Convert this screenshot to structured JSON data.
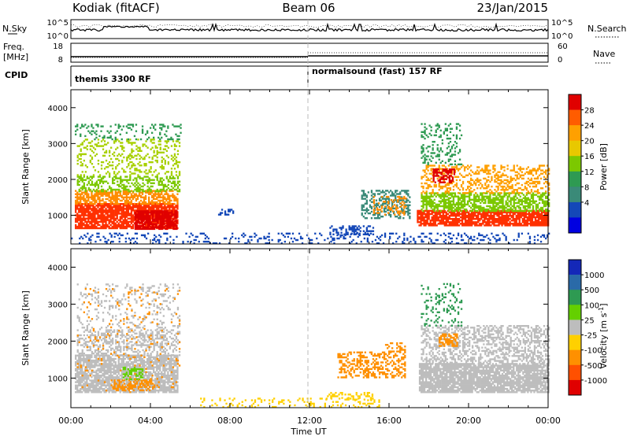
{
  "header": {
    "station": "Kodiak (fitACF)",
    "beam": "Beam 06",
    "date": "23/Jan/2015"
  },
  "colors": {
    "dash_line": "#bbbbbb",
    "bad": "#bdbdbd"
  },
  "top_panels": {
    "nsky": {
      "label": "N.Sky",
      "ticks": [
        "10^5",
        "10^0"
      ]
    },
    "nsearch": {
      "label": "N.Search",
      "ticks": [
        "10^5",
        "10^0"
      ]
    },
    "freq": {
      "label_lines": [
        "Freq.",
        "[MHz]"
      ],
      "ticks": [
        "18",
        "8"
      ]
    },
    "nave": {
      "label": "Nave",
      "ticks": [
        "60",
        "0"
      ]
    },
    "cpid": {
      "label": "CPID",
      "segments": [
        {
          "text": "themis 3300 RF",
          "start_hour": 0
        },
        {
          "text": "normalsound (fast) 157 RF",
          "start_hour": 12
        }
      ]
    }
  },
  "chart_data": [
    {
      "type": "heatmap",
      "name": "power",
      "ylabel": "Slant Range [km]",
      "xlabel": "",
      "xlim": [
        0,
        24
      ],
      "ylim": [
        200,
        4500
      ],
      "yticks": [
        "1000",
        "2000",
        "3000",
        "4000"
      ],
      "grid": false,
      "colorbar": {
        "label": "Power [dB]",
        "ticks": [
          "28",
          "24",
          "20",
          "16",
          "12",
          "8",
          "4"
        ],
        "colors": [
          "#e00000",
          "#ff5c00",
          "#ffa000",
          "#e8c800",
          "#7cc800",
          "#2e9a52",
          "#3a8a78",
          "#1448b8",
          "#0000e0"
        ]
      },
      "blobs": [
        {
          "x": [
            0.2,
            5.4
          ],
          "y": [
            620,
            1320
          ],
          "color": "#ff3000",
          "density": 0.82
        },
        {
          "x": [
            0.2,
            5.4
          ],
          "y": [
            1300,
            1700
          ],
          "color": "#ff8c00",
          "density": 0.65
        },
        {
          "x": [
            0.3,
            5.5
          ],
          "y": [
            1650,
            2100
          ],
          "color": "#7cc800",
          "density": 0.45
        },
        {
          "x": [
            0.3,
            5.5
          ],
          "y": [
            2100,
            3100
          ],
          "color": "#a8d000",
          "density": 0.25
        },
        {
          "x": [
            3.2,
            5.3
          ],
          "y": [
            600,
            1100
          ],
          "color": "#e00000",
          "density": 0.8
        },
        {
          "x": [
            0.2,
            5.6
          ],
          "y": [
            3100,
            3550
          ],
          "color": "#2e9a52",
          "density": 0.18
        },
        {
          "x": [
            14.6,
            17.0
          ],
          "y": [
            900,
            1700
          ],
          "color": "#3a8a78",
          "density": 0.4
        },
        {
          "x": [
            15.2,
            16.8
          ],
          "y": [
            1000,
            1500
          ],
          "color": "#ff8c00",
          "density": 0.25
        },
        {
          "x": [
            13.0,
            15.2
          ],
          "y": [
            450,
            700
          ],
          "color": "#1448b8",
          "density": 0.45
        },
        {
          "x": [
            17.4,
            24.0
          ],
          "y": [
            700,
            1150
          ],
          "color": "#ff3000",
          "density": 0.85
        },
        {
          "x": [
            17.6,
            24.0
          ],
          "y": [
            1100,
            1600
          ],
          "color": "#7cc800",
          "density": 0.6
        },
        {
          "x": [
            17.6,
            24.0
          ],
          "y": [
            1600,
            2400
          ],
          "color": "#ffa000",
          "density": 0.35
        },
        {
          "x": [
            18.2,
            19.3
          ],
          "y": [
            1900,
            2300
          ],
          "color": "#e00000",
          "density": 0.6
        },
        {
          "x": [
            17.6,
            19.6
          ],
          "y": [
            2400,
            3550
          ],
          "color": "#2e9a52",
          "density": 0.22
        },
        {
          "x": [
            0.0,
            24.0
          ],
          "y": [
            200,
            480
          ],
          "color": "#1448b8",
          "density": 0.18
        },
        {
          "x": [
            7.4,
            8.2
          ],
          "y": [
            1000,
            1150
          ],
          "color": "#1448b8",
          "density": 0.4
        }
      ]
    },
    {
      "type": "heatmap",
      "name": "velocity",
      "ylabel": "Slant Range [km]",
      "xlabel": "Time UT",
      "xlim": [
        0,
        24
      ],
      "ylim": [
        200,
        4500
      ],
      "xticks": [
        "00:00",
        "04:00",
        "08:00",
        "12:00",
        "16:00",
        "20:00",
        "00:00"
      ],
      "yticks": [
        "1000",
        "2000",
        "3000",
        "4000"
      ],
      "grid": false,
      "colorbar": {
        "label": "Velocity [m s",
        "label_sup": "-1",
        "label_end": "]",
        "ticks": [
          "1000",
          "500",
          "100",
          "25",
          "-25",
          "-100",
          "-500",
          "-1000"
        ],
        "colors": [
          "#1428b8",
          "#2a6aa8",
          "#2e9a52",
          "#64d000",
          "#bdbdbd",
          "#ffd000",
          "#ff9000",
          "#ff5000",
          "#e00000"
        ]
      },
      "blobs": [
        {
          "x": [
            0.2,
            5.4
          ],
          "y": [
            600,
            1600
          ],
          "color": "#bdbdbd",
          "density": 0.8
        },
        {
          "x": [
            0.3,
            5.5
          ],
          "y": [
            1600,
            2300
          ],
          "color": "#bdbdbd",
          "density": 0.4
        },
        {
          "x": [
            0.3,
            5.5
          ],
          "y": [
            2300,
            3550
          ],
          "color": "#bdbdbd",
          "density": 0.15
        },
        {
          "x": [
            2.6,
            3.6
          ],
          "y": [
            950,
            1300
          ],
          "color": "#64d000",
          "density": 0.5
        },
        {
          "x": [
            2.0,
            4.2
          ],
          "y": [
            650,
            950
          ],
          "color": "#ff9000",
          "density": 0.5
        },
        {
          "x": [
            0.3,
            5.5
          ],
          "y": [
            600,
            3500
          ],
          "color": "#ff9000",
          "density": 0.04
        },
        {
          "x": [
            13.4,
            16.8
          ],
          "y": [
            1000,
            1700
          ],
          "color": "#ff9000",
          "density": 0.4
        },
        {
          "x": [
            15.8,
            16.8
          ],
          "y": [
            1700,
            1950
          ],
          "color": "#ff9000",
          "density": 0.4
        },
        {
          "x": [
            17.5,
            24.0
          ],
          "y": [
            600,
            1400
          ],
          "color": "#bdbdbd",
          "density": 0.85
        },
        {
          "x": [
            17.6,
            24.0
          ],
          "y": [
            1400,
            2400
          ],
          "color": "#bdbdbd",
          "density": 0.45
        },
        {
          "x": [
            18.5,
            19.4
          ],
          "y": [
            1850,
            2200
          ],
          "color": "#ff9000",
          "density": 0.55
        },
        {
          "x": [
            17.6,
            19.6
          ],
          "y": [
            2400,
            3550
          ],
          "color": "#2e9a52",
          "density": 0.18
        },
        {
          "x": [
            6.5,
            15.5
          ],
          "y": [
            200,
            450
          ],
          "color": "#ffd000",
          "density": 0.18
        },
        {
          "x": [
            12.8,
            15.2
          ],
          "y": [
            400,
            600
          ],
          "color": "#ffd000",
          "density": 0.3
        }
      ]
    }
  ]
}
